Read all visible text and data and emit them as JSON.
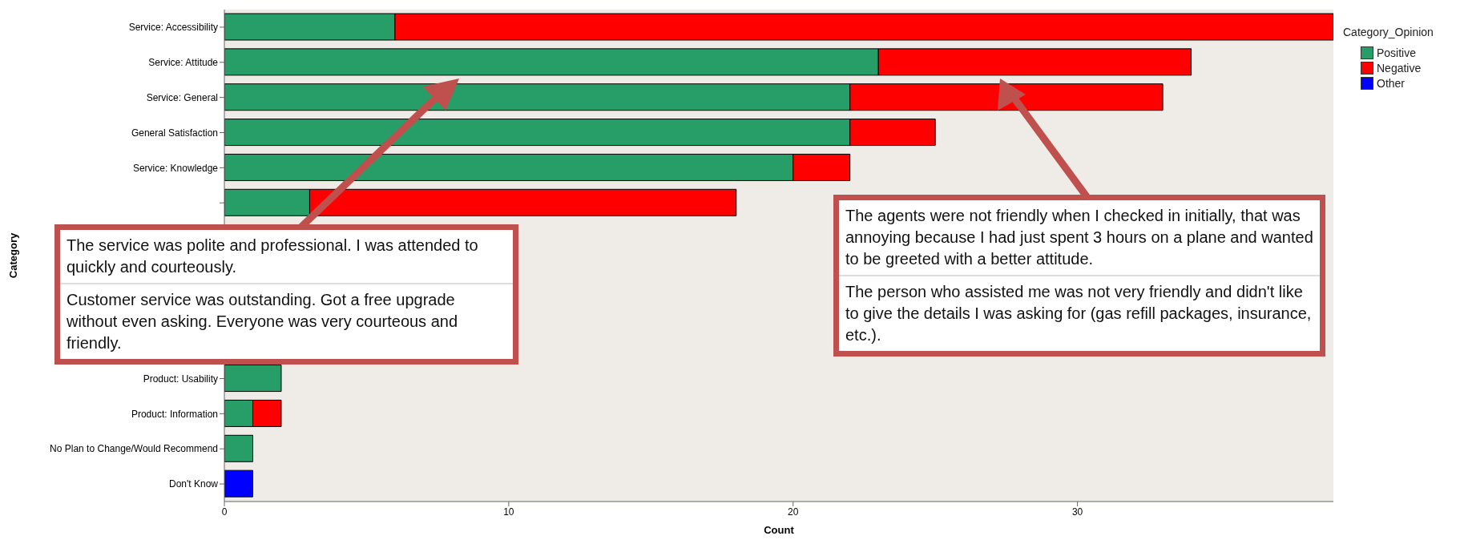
{
  "chart_data": {
    "type": "bar",
    "orientation": "horizontal",
    "stacked": true,
    "xlabel": "Count",
    "ylabel": "Category",
    "legend_title": "Category_Opinion",
    "legend": "top right",
    "grid": false,
    "categories": [
      "Service: Accessibility",
      "Service: Attitude",
      "Service: General",
      "General Satisfaction",
      "Service: Knowledge",
      null,
      null,
      null,
      null,
      null,
      "Product: Usability",
      "Product: Information",
      "No Plan to Change/Would Recommend",
      "Don't Know"
    ],
    "xlim": [
      0,
      39
    ],
    "xticks": [
      0,
      10,
      20,
      30
    ],
    "series": [
      {
        "name": "Positive",
        "color": "#279e68",
        "values": [
          6,
          23,
          22,
          22,
          20,
          3,
          null,
          null,
          null,
          null,
          2,
          1,
          1,
          null
        ]
      },
      {
        "name": "Negative",
        "color": "#ff0000",
        "values": [
          33,
          11,
          11,
          3,
          2,
          15,
          null,
          null,
          null,
          null,
          null,
          1,
          null,
          null
        ]
      },
      {
        "name": "Other",
        "color": "#0000ff",
        "values": [
          null,
          null,
          null,
          null,
          null,
          null,
          null,
          null,
          null,
          null,
          null,
          null,
          null,
          1
        ]
      }
    ],
    "annotations": [
      "The service was polite and professional. I was attended to quickly and courteously.",
      "Customer service was outstanding. Got a free upgrade without even asking. Everyone was very courteous and friendly.",
      "The agents were not friendly when I checked in initially, that was annoying because I had just spent 3 hours on a plane and wanted to be greeted with a better attitude.",
      "The person who assisted me was not very friendly and didn't like to give the details I was asking for (gas refill packages, insurance, etc.)."
    ]
  }
}
